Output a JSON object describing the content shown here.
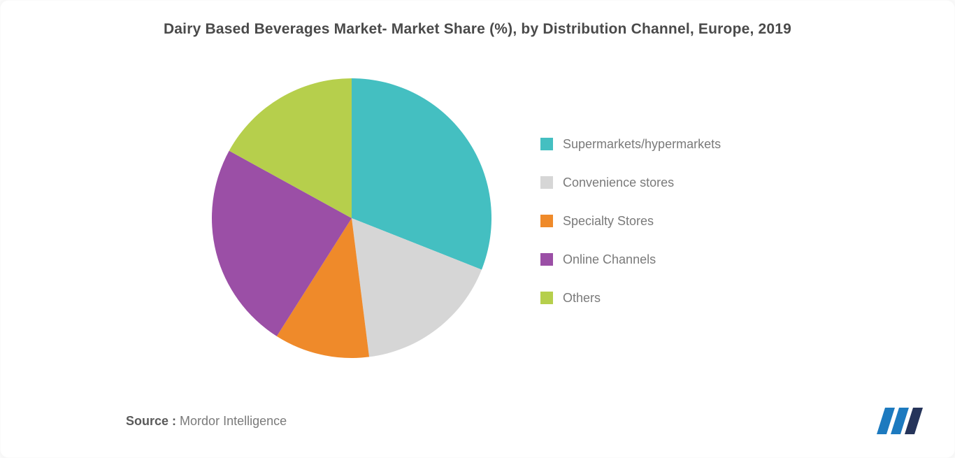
{
  "title": "Dairy Based Beverages Market- Market Share (%), by Distribution Channel, Europe, 2019",
  "chart": {
    "type": "pie",
    "background_color": "#ffffff",
    "title_fontsize": 21,
    "title_color": "#4a4a4a",
    "legend_fontsize": 18,
    "legend_color": "#7a7a7a",
    "slice_border_width": 0,
    "start_angle_deg": 0,
    "direction": "clockwise",
    "slices": [
      {
        "label": "Supermarkets/hypermarkets",
        "value": 31,
        "color": "#44bfc1"
      },
      {
        "label": "Convenience stores",
        "value": 17,
        "color": "#d6d6d6"
      },
      {
        "label": "Specialty Stores",
        "value": 11,
        "color": "#ef8a2a"
      },
      {
        "label": "Online Channels",
        "value": 24,
        "color": "#9b4fa6"
      },
      {
        "label": "Others",
        "value": 17,
        "color": "#b6cf4c"
      }
    ]
  },
  "source": {
    "label": "Source :",
    "name": "Mordor Intelligence"
  },
  "logo": {
    "bar_colors": [
      "#1d7abf",
      "#1d7abf",
      "#25345a"
    ],
    "background": "#ffffff"
  }
}
